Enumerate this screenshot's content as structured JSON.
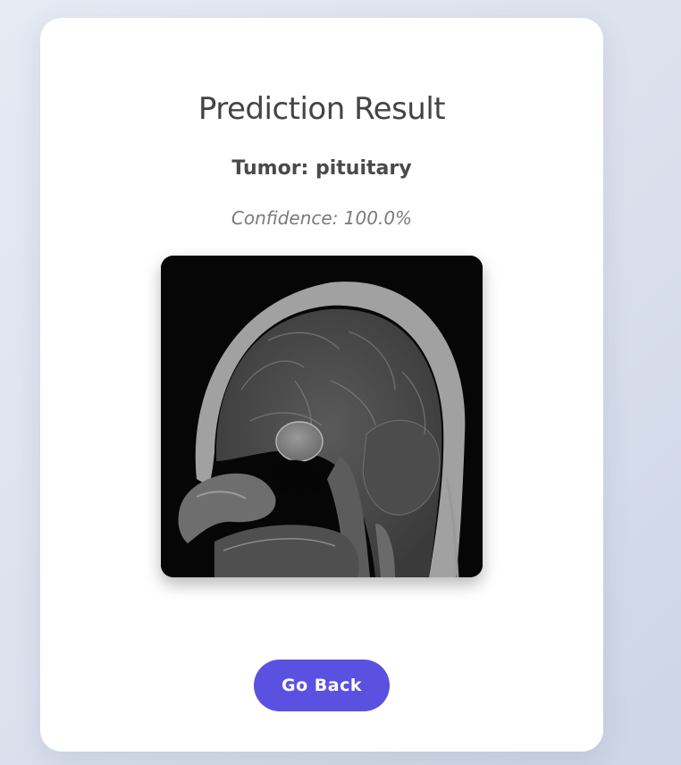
{
  "result": {
    "title": "Prediction Result",
    "tumor_line": "Tumor: pituitary",
    "confidence_line": "Confidence: 100.0%"
  },
  "image": {
    "name": "mri-sagittal-brain-scan"
  },
  "actions": {
    "back_label": "Go Back"
  },
  "colors": {
    "button": "#5b51e0",
    "card": "#ffffff",
    "background": "#dde2ee"
  }
}
